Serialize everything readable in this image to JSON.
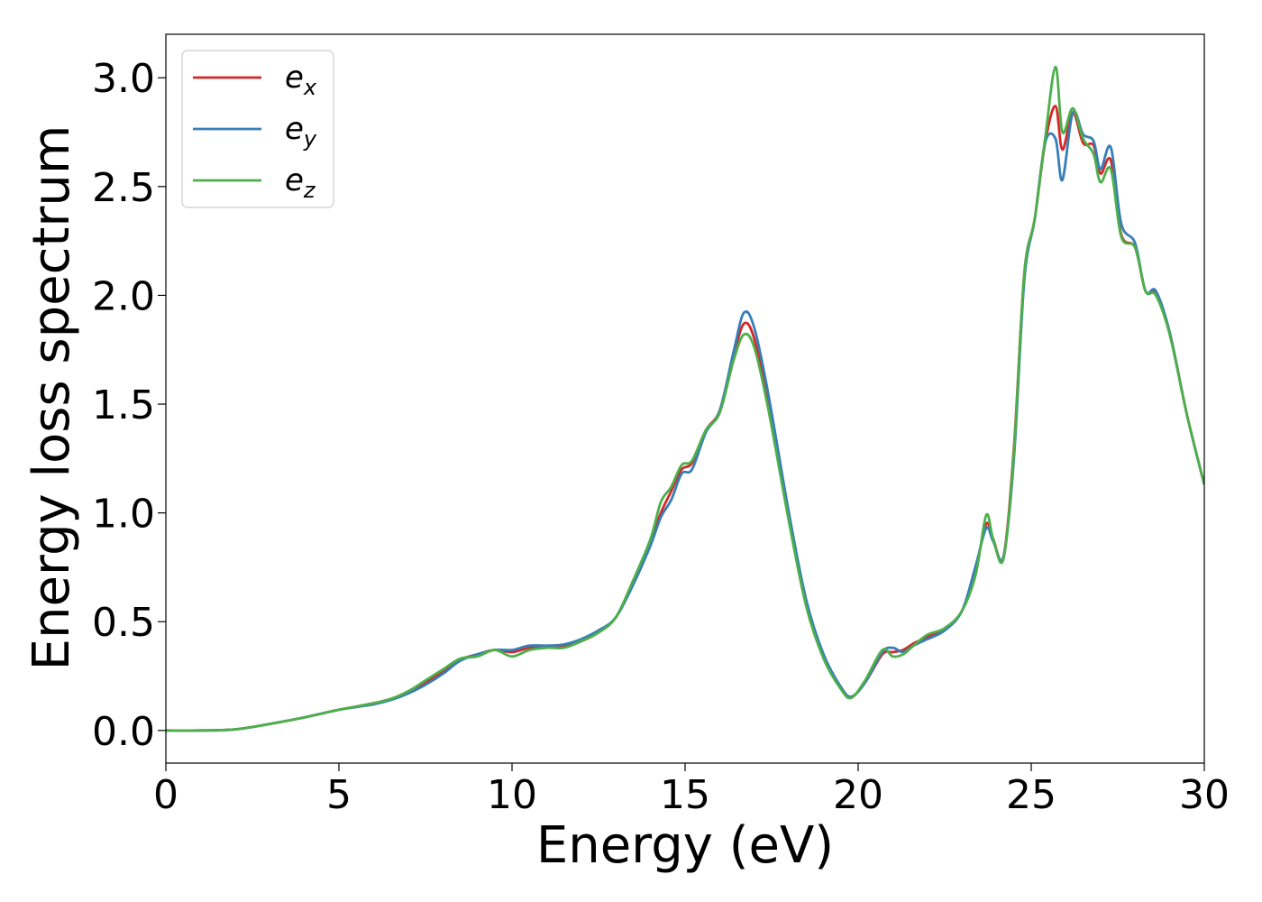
{
  "chart_data": {
    "type": "line",
    "title": "",
    "xlabel": "Energy (eV)",
    "ylabel": "Energy loss spectrum",
    "xlim": [
      0,
      30
    ],
    "ylim": [
      -0.15,
      3.2
    ],
    "xticks": [
      0,
      5,
      10,
      15,
      20,
      25,
      30
    ],
    "xtick_labels": [
      "0",
      "5",
      "10",
      "15",
      "20",
      "25",
      "30"
    ],
    "yticks": [
      0.0,
      0.5,
      1.0,
      1.5,
      2.0,
      2.5,
      3.0
    ],
    "ytick_labels": [
      "0.0",
      "0.5",
      "1.0",
      "1.5",
      "2.0",
      "2.5",
      "3.0"
    ],
    "grid": false,
    "legend_position": "top-left",
    "series": [
      {
        "name": "e_x",
        "legend_main": "e",
        "legend_sub": "x",
        "color": "#d62728",
        "x": [
          0,
          1,
          2,
          3,
          4,
          5,
          6,
          6.5,
          7,
          7.5,
          8,
          8.5,
          9,
          9.5,
          10,
          10.5,
          11,
          11.5,
          12,
          12.5,
          13,
          13.5,
          14,
          14.3,
          14.6,
          14.9,
          15.2,
          15.6,
          16,
          16.4,
          16.7,
          17,
          17.4,
          18,
          18.5,
          19,
          19.5,
          19.8,
          20.2,
          20.7,
          21,
          21.3,
          21.6,
          22,
          22.5,
          23,
          23.4,
          23.7,
          23.9,
          24.2,
          24.5,
          24.8,
          25.1,
          25.4,
          25.7,
          25.9,
          26.2,
          26.5,
          26.8,
          27.0,
          27.3,
          27.6,
          28,
          28.3,
          28.6,
          29,
          29.5,
          30
        ],
        "y": [
          0.0,
          0.0,
          0.005,
          0.03,
          0.06,
          0.095,
          0.125,
          0.145,
          0.175,
          0.22,
          0.27,
          0.325,
          0.35,
          0.37,
          0.36,
          0.38,
          0.385,
          0.385,
          0.41,
          0.45,
          0.52,
          0.68,
          0.87,
          1.0,
          1.1,
          1.2,
          1.23,
          1.38,
          1.47,
          1.72,
          1.87,
          1.8,
          1.5,
          0.98,
          0.58,
          0.34,
          0.2,
          0.155,
          0.22,
          0.35,
          0.36,
          0.37,
          0.4,
          0.43,
          0.47,
          0.55,
          0.75,
          0.95,
          0.88,
          0.8,
          1.3,
          2.1,
          2.35,
          2.7,
          2.87,
          2.67,
          2.84,
          2.7,
          2.69,
          2.56,
          2.62,
          2.28,
          2.22,
          2.02,
          2.01,
          1.83,
          1.45,
          1.13
        ]
      },
      {
        "name": "e_y",
        "legend_main": "e",
        "legend_sub": "y",
        "color": "#377eb8",
        "x": [
          0,
          1,
          2,
          3,
          4,
          5,
          6,
          6.5,
          7,
          7.5,
          8,
          8.5,
          9,
          9.5,
          10,
          10.5,
          11,
          11.5,
          12,
          12.5,
          13,
          13.5,
          14,
          14.3,
          14.6,
          14.9,
          15.2,
          15.6,
          16,
          16.4,
          16.7,
          17,
          17.4,
          18,
          18.5,
          19,
          19.5,
          19.8,
          20.2,
          20.7,
          21,
          21.3,
          21.6,
          22,
          22.5,
          23,
          23.4,
          23.7,
          23.9,
          24.2,
          24.5,
          24.8,
          25.1,
          25.4,
          25.7,
          25.9,
          26.2,
          26.5,
          26.8,
          27.0,
          27.3,
          27.6,
          28,
          28.3,
          28.6,
          29,
          29.5,
          30
        ],
        "y": [
          0.0,
          0.0,
          0.005,
          0.03,
          0.06,
          0.095,
          0.12,
          0.14,
          0.17,
          0.21,
          0.26,
          0.32,
          0.35,
          0.37,
          0.37,
          0.39,
          0.39,
          0.395,
          0.42,
          0.46,
          0.52,
          0.67,
          0.85,
          0.98,
          1.06,
          1.18,
          1.2,
          1.37,
          1.47,
          1.74,
          1.92,
          1.85,
          1.55,
          1.0,
          0.6,
          0.35,
          0.2,
          0.155,
          0.22,
          0.36,
          0.38,
          0.36,
          0.39,
          0.42,
          0.46,
          0.55,
          0.76,
          0.93,
          0.87,
          0.8,
          1.25,
          2.07,
          2.35,
          2.7,
          2.72,
          2.53,
          2.84,
          2.74,
          2.71,
          2.58,
          2.68,
          2.33,
          2.24,
          2.02,
          2.02,
          1.83,
          1.45,
          1.13
        ]
      },
      {
        "name": "e_z",
        "legend_main": "e",
        "legend_sub": "z",
        "color": "#4daf4a",
        "x": [
          0,
          1,
          2,
          3,
          4,
          5,
          6,
          6.5,
          7,
          7.5,
          8,
          8.5,
          9,
          9.5,
          10,
          10.5,
          11,
          11.5,
          12,
          12.5,
          13,
          13.5,
          14,
          14.3,
          14.6,
          14.9,
          15.2,
          15.6,
          16,
          16.4,
          16.7,
          17,
          17.4,
          18,
          18.5,
          19,
          19.5,
          19.8,
          20.2,
          20.7,
          21,
          21.3,
          21.6,
          22,
          22.5,
          23,
          23.4,
          23.7,
          23.9,
          24.2,
          24.5,
          24.8,
          25.1,
          25.4,
          25.7,
          25.9,
          26.2,
          26.5,
          26.8,
          27.0,
          27.3,
          27.6,
          28,
          28.3,
          28.6,
          29,
          29.5,
          30
        ],
        "y": [
          0.0,
          0.0,
          0.005,
          0.03,
          0.06,
          0.095,
          0.125,
          0.145,
          0.18,
          0.23,
          0.28,
          0.33,
          0.34,
          0.37,
          0.34,
          0.37,
          0.38,
          0.38,
          0.41,
          0.45,
          0.52,
          0.69,
          0.88,
          1.05,
          1.12,
          1.22,
          1.24,
          1.38,
          1.46,
          1.7,
          1.82,
          1.76,
          1.48,
          0.96,
          0.57,
          0.33,
          0.19,
          0.15,
          0.23,
          0.37,
          0.34,
          0.35,
          0.39,
          0.44,
          0.47,
          0.55,
          0.72,
          0.99,
          0.88,
          0.79,
          1.28,
          2.1,
          2.35,
          2.72,
          3.05,
          2.75,
          2.86,
          2.72,
          2.65,
          2.52,
          2.58,
          2.27,
          2.22,
          2.02,
          2.0,
          1.82,
          1.45,
          1.13
        ]
      }
    ]
  }
}
